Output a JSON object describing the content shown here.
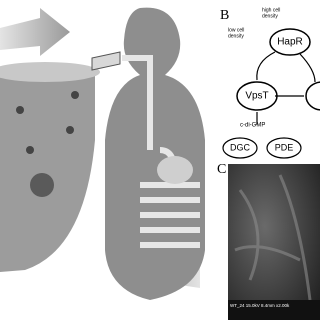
{
  "panel_b": {
    "label": "B",
    "high_density": [
      "high cell",
      "density"
    ],
    "low_density": [
      "low cell",
      "density"
    ],
    "nodes": [
      "HapR",
      "VpsT",
      "DGC",
      "PDE"
    ],
    "signal": "c-di-GMP"
  },
  "panel_c": {
    "label": "C",
    "caption": "WT_24 15.0kV 8.4mm x2.00k"
  }
}
